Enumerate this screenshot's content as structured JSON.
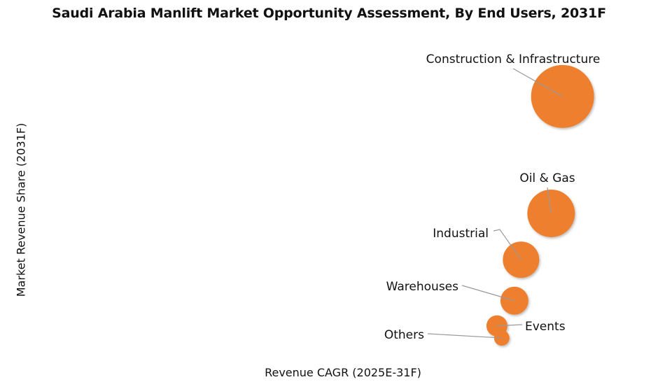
{
  "chart_data": {
    "type": "scatter",
    "subtype": "bubble",
    "title": "Saudi Arabia Manlift Market Opportunity Assessment, By End Users, 2031F",
    "xlabel": "Revenue CAGR (2025E-31F)",
    "ylabel": "Market Revenue Share (2031F)",
    "xlim": [
      0,
      100
    ],
    "ylim": [
      0,
      100
    ],
    "grid": false,
    "note": "axes have no tick values; x/y in relative units",
    "color": "#EE7F2D",
    "series": [
      {
        "name": "Construction & Infrastructure",
        "x": 88.8,
        "y": 79.6,
        "size": 2025
      },
      {
        "name": "Oil & Gas",
        "x": 86.9,
        "y": 44.8,
        "size": 1156
      },
      {
        "name": "Industrial",
        "x": 81.9,
        "y": 31.0,
        "size": 676
      },
      {
        "name": "Warehouses",
        "x": 80.8,
        "y": 18.8,
        "size": 400
      },
      {
        "name": "Events",
        "x": 77.9,
        "y": 11.3,
        "size": 225
      },
      {
        "name": "Others",
        "x": 78.7,
        "y": 7.7,
        "size": 121
      }
    ]
  }
}
